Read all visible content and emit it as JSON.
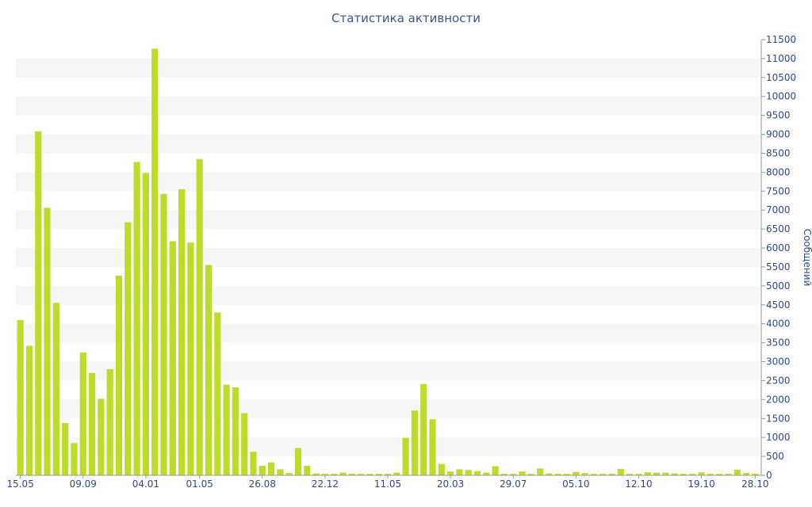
{
  "chart_data": {
    "type": "bar",
    "title": "Статистика активности",
    "xlabel": "",
    "ylabel": "Сообщений",
    "ylim": [
      0,
      11500
    ],
    "y_ticks": [
      0,
      500,
      1000,
      1500,
      2000,
      2500,
      3000,
      3500,
      4000,
      4500,
      5000,
      5500,
      6000,
      6500,
      7000,
      7500,
      8000,
      8500,
      9000,
      9500,
      10000,
      10500,
      11000,
      11500
    ],
    "x_tick_labels": [
      {
        "label": "15.05",
        "index": 0
      },
      {
        "label": "09.09",
        "index": 7
      },
      {
        "label": "04.01",
        "index": 14
      },
      {
        "label": "01.05",
        "index": 20
      },
      {
        "label": "26.08",
        "index": 27
      },
      {
        "label": "22.12",
        "index": 34
      },
      {
        "label": "11.05",
        "index": 41
      },
      {
        "label": "20.03",
        "index": 48
      },
      {
        "label": "29.07",
        "index": 55
      },
      {
        "label": "05.10",
        "index": 62
      },
      {
        "label": "12.10",
        "index": 69
      },
      {
        "label": "19.10",
        "index": 76
      },
      {
        "label": "28.10",
        "index": 82
      }
    ],
    "grid": "alternating horizontal bands",
    "y_axis_position": "right",
    "bar_color": "#bcdc2a",
    "values": [
      4100,
      3420,
      9080,
      7060,
      4550,
      1380,
      850,
      3240,
      2700,
      2020,
      2800,
      5270,
      6680,
      8270,
      7980,
      11260,
      7430,
      6180,
      7550,
      6140,
      8350,
      5550,
      4300,
      2390,
      2320,
      1640,
      620,
      250,
      340,
      160,
      60,
      720,
      250,
      50,
      40,
      40,
      70,
      40,
      40,
      40,
      40,
      40,
      70,
      990,
      1710,
      2410,
      1480,
      300,
      100,
      160,
      140,
      110,
      70,
      240,
      40,
      40,
      100,
      40,
      180,
      50,
      40,
      40,
      90,
      60,
      40,
      40,
      40,
      170,
      40,
      40,
      80,
      70,
      70,
      50,
      40,
      40,
      80,
      40,
      40,
      40,
      150,
      60,
      40
    ]
  }
}
